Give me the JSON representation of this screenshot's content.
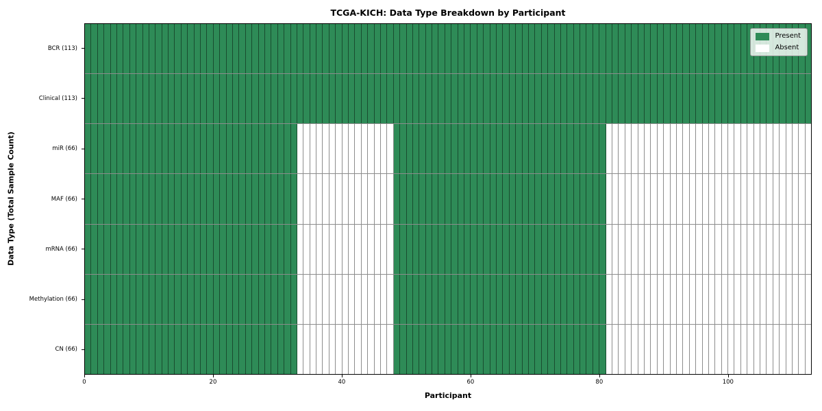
{
  "chart_data": {
    "type": "heatmap",
    "title": "TCGA-KICH: Data Type Breakdown by Participant",
    "xlabel": "Participant",
    "ylabel": "Data Type (Total Sample Count)",
    "n_participants": 113,
    "x_ticks": [
      0,
      20,
      40,
      60,
      80,
      100
    ],
    "x_range": [
      0,
      113
    ],
    "grid": "cell-edges",
    "legend_position": "upper-right",
    "colors": {
      "present": "#2e8b57",
      "absent": "#ffffff",
      "cell_edge": "rgba(0,0,0,0.45)"
    },
    "legend": [
      {
        "label": "Present",
        "color": "#2e8b57"
      },
      {
        "label": "Absent",
        "color": "#ffffff"
      }
    ],
    "rows": [
      {
        "data_type": "BCR",
        "label": "BCR (113)",
        "total": 113,
        "present_ranges": [
          [
            0,
            113
          ]
        ]
      },
      {
        "data_type": "Clinical",
        "label": "Clinical (113)",
        "total": 113,
        "present_ranges": [
          [
            0,
            113
          ]
        ]
      },
      {
        "data_type": "miR",
        "label": "miR (66)",
        "total": 66,
        "present_ranges": [
          [
            0,
            33
          ],
          [
            48,
            81
          ]
        ]
      },
      {
        "data_type": "MAF",
        "label": "MAF (66)",
        "total": 66,
        "present_ranges": [
          [
            0,
            33
          ],
          [
            48,
            81
          ]
        ]
      },
      {
        "data_type": "mRNA",
        "label": "mRNA (66)",
        "total": 66,
        "present_ranges": [
          [
            0,
            33
          ],
          [
            48,
            81
          ]
        ]
      },
      {
        "data_type": "Methylation",
        "label": "Methylation (66)",
        "total": 66,
        "present_ranges": [
          [
            0,
            33
          ],
          [
            48,
            81
          ]
        ]
      },
      {
        "data_type": "CN",
        "label": "CN (66)",
        "total": 66,
        "present_ranges": [
          [
            0,
            33
          ],
          [
            48,
            81
          ]
        ]
      }
    ]
  }
}
